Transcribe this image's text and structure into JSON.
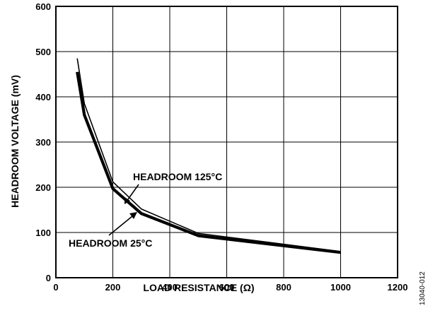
{
  "chart_data": {
    "type": "line",
    "title": "",
    "xlabel": "LOAD RESISTANCE (Ω)",
    "ylabel": "HEADROOM VOLTAGE (mV)",
    "xlim": [
      0,
      1200
    ],
    "ylim": [
      0,
      600
    ],
    "xticks": [
      0,
      200,
      400,
      600,
      800,
      1000,
      1200
    ],
    "yticks": [
      0,
      100,
      200,
      300,
      400,
      500,
      600
    ],
    "grid": true,
    "series": [
      {
        "name": "HEADROOM 125°C",
        "x": [
          75,
          100,
          200,
          300,
          500,
          1000
        ],
        "y": [
          485,
          385,
          212,
          152,
          98,
          58
        ]
      },
      {
        "name": "HEADROOM 25°C",
        "x": [
          75,
          100,
          200,
          300,
          500,
          1000
        ],
        "y": [
          455,
          360,
          197,
          142,
          93,
          56
        ]
      }
    ],
    "annotations": [
      {
        "text": "HEADROOM 125°C",
        "series": 0
      },
      {
        "text": "HEADROOM 25°C",
        "series": 1
      }
    ],
    "figure_id": "13040-012"
  }
}
